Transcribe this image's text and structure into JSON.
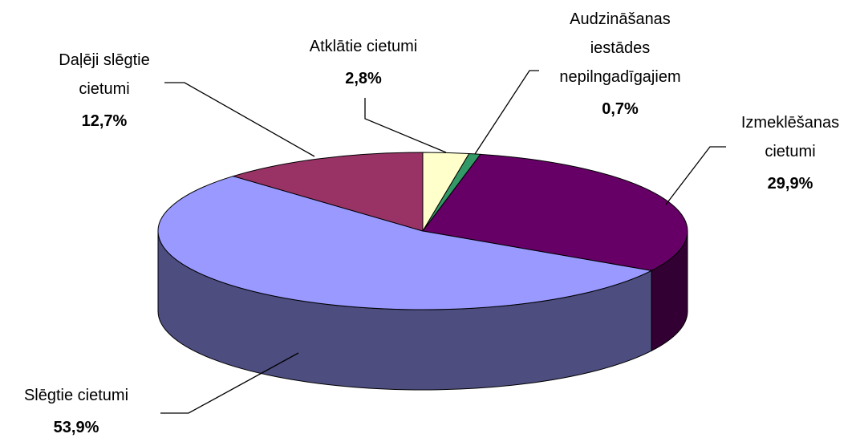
{
  "chart_data": {
    "type": "pie",
    "categories": [
      "Atklātie cietumi",
      "Audzināšanas\niestādes\nnepilngadīgajiem",
      "Izmeklēšanas\ncietumi",
      "Slēgtie cietumi",
      "Daļēji slēgtie\ncietumi"
    ],
    "values": [
      2.8,
      0.7,
      29.9,
      53.9,
      12.7
    ],
    "value_labels": [
      "2,8%",
      "0,7%",
      "29,9%",
      "53,9%",
      "12,7%"
    ],
    "colors": [
      "#ffffcc",
      "#339966",
      "#660066",
      "#9999ff",
      "#993366"
    ]
  }
}
